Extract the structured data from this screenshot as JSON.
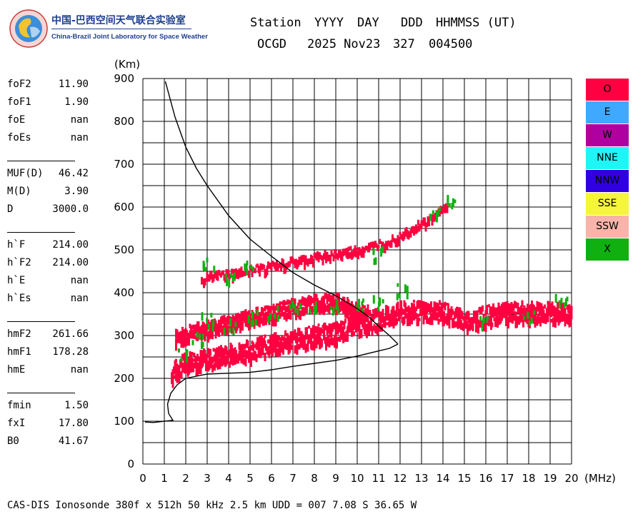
{
  "logo": {
    "title_cn": "中国-巴西空间天气联合实验室",
    "title_en": "China-Brazil Joint Laboratory for Space Weather"
  },
  "header": {
    "labels": [
      "Station",
      "YYYY",
      "DAY",
      "DDD",
      "HHMMSS (UT)"
    ],
    "station": "OCGD",
    "date": "2025 Nov23",
    "doy": "327",
    "time": "004500"
  },
  "params": [
    {
      "name": "foF2",
      "value": "11.90"
    },
    {
      "name": "foF1",
      "value": "1.90"
    },
    {
      "name": "foE",
      "value": "nan"
    },
    {
      "name": "foEs",
      "value": "nan"
    },
    {
      "name": "MUF(D)",
      "value": "46.42"
    },
    {
      "name": "M(D)",
      "value": "3.90"
    },
    {
      "name": "D",
      "value": "3000.0"
    },
    {
      "name": "h`F",
      "value": "214.00"
    },
    {
      "name": "h`F2",
      "value": "214.00"
    },
    {
      "name": "h`E",
      "value": "nan"
    },
    {
      "name": "h`Es",
      "value": "nan"
    },
    {
      "name": "hmF2",
      "value": "261.66"
    },
    {
      "name": "hmF1",
      "value": "178.28"
    },
    {
      "name": "hmE",
      "value": "nan"
    },
    {
      "name": "fmin",
      "value": "1.50"
    },
    {
      "name": "fxI",
      "value": "17.80"
    },
    {
      "name": "B0",
      "value": "41.67"
    }
  ],
  "legend": [
    {
      "label": "O",
      "color": "#ff0040"
    },
    {
      "label": "E",
      "color": "#3fa9ff"
    },
    {
      "label": "W",
      "color": "#b000a0"
    },
    {
      "label": "NNE",
      "color": "#1ff5f5"
    },
    {
      "label": "NNW",
      "color": "#3000e0"
    },
    {
      "label": "SSE",
      "color": "#f5f53a"
    },
    {
      "label": "SSW",
      "color": "#f8b4aa"
    },
    {
      "label": "X",
      "color": "#10b010"
    }
  ],
  "footer": "CAS-DIS Ionosonde 380f x 512h 50 kHz 2.5 km UDD = 007 7.08 S 36.65 W",
  "chart_data": {
    "type": "scatter",
    "xlabel": "(MHz)",
    "ylabel": "(Km)",
    "xlim": [
      0,
      20
    ],
    "ylim": [
      0,
      900
    ],
    "xticks": [
      "0",
      "1",
      "2",
      "3",
      "4",
      "5",
      "6",
      "7",
      "8",
      "9",
      "10",
      "11",
      "12",
      "13",
      "14",
      "15",
      "16",
      "17",
      "18",
      "19",
      "20"
    ],
    "yticks": [
      "0",
      "100",
      "200",
      "300",
      "400",
      "500",
      "600",
      "700",
      "800",
      "900"
    ],
    "grid": true,
    "legend_position": "right",
    "traces": [
      {
        "polarization": "O",
        "color": "#ff0040",
        "points": [
          [
            1.3,
            215
          ],
          [
            1.5,
            225
          ],
          [
            2,
            245
          ],
          [
            3,
            250
          ],
          [
            4,
            262
          ],
          [
            5,
            272
          ],
          [
            6,
            285
          ],
          [
            7,
            295
          ],
          [
            8,
            305
          ],
          [
            9,
            312
          ],
          [
            10,
            330
          ],
          [
            11,
            345
          ],
          [
            12,
            360
          ],
          [
            13,
            362
          ],
          [
            14,
            360
          ],
          [
            15,
            340
          ],
          [
            16,
            350
          ],
          [
            17,
            360
          ],
          [
            18,
            360
          ],
          [
            19,
            360
          ],
          [
            20,
            355
          ]
        ]
      },
      {
        "polarization": "O",
        "color": "#ff0040",
        "points": [
          [
            1.5,
            300
          ],
          [
            2,
            310
          ],
          [
            3,
            322
          ],
          [
            4,
            335
          ],
          [
            5,
            348
          ],
          [
            6,
            358
          ],
          [
            7,
            372
          ],
          [
            8,
            382
          ],
          [
            9,
            385
          ],
          [
            10,
            362
          ],
          [
            10.5,
            355
          ]
        ]
      },
      {
        "polarization": "O",
        "color": "#ff0040",
        "points": [
          [
            2.7,
            440
          ],
          [
            3.5,
            445
          ],
          [
            4.5,
            452
          ],
          [
            5.5,
            462
          ],
          [
            6.5,
            472
          ],
          [
            7.5,
            482
          ],
          [
            8.5,
            492
          ],
          [
            9.5,
            500
          ],
          [
            10.5,
            510
          ],
          [
            11.5,
            528
          ],
          [
            12.5,
            555
          ],
          [
            13.5,
            580
          ],
          [
            14.2,
            615
          ]
        ]
      },
      {
        "polarization": "X",
        "color": "#10b010",
        "points": [
          [
            1.8,
            260
          ],
          [
            2.5,
            300
          ],
          [
            3,
            340
          ],
          [
            4,
            330
          ],
          [
            5,
            350
          ],
          [
            6,
            360
          ],
          [
            7,
            370
          ],
          [
            8,
            375
          ],
          [
            9,
            372
          ],
          [
            10,
            372
          ],
          [
            11,
            380
          ],
          [
            12,
            410
          ],
          [
            3,
            470
          ],
          [
            4,
            445
          ],
          [
            5,
            460
          ],
          [
            11,
            495
          ],
          [
            13.5,
            590
          ],
          [
            14.3,
            620
          ],
          [
            16,
            340
          ],
          [
            18,
            345
          ],
          [
            19.5,
            390
          ]
        ]
      }
    ],
    "profile": {
      "type": "line",
      "color": "#000000",
      "points": [
        [
          0.1,
          98
        ],
        [
          0.5,
          97
        ],
        [
          1.0,
          100
        ],
        [
          1.4,
          102
        ],
        [
          1.2,
          118
        ],
        [
          1.15,
          140
        ],
        [
          1.3,
          165
        ],
        [
          1.6,
          185
        ],
        [
          2.0,
          200
        ],
        [
          3.0,
          210
        ],
        [
          4.0,
          212
        ],
        [
          5.0,
          214
        ],
        [
          6.0,
          220
        ],
        [
          7.0,
          228
        ],
        [
          8.0,
          235
        ],
        [
          9.0,
          242
        ],
        [
          10.0,
          252
        ],
        [
          11.0,
          264
        ],
        [
          11.5,
          270
        ],
        [
          11.9,
          280
        ]
      ]
    },
    "virtual_height": {
      "type": "line",
      "color": "#000000",
      "points": [
        [
          1.05,
          893
        ],
        [
          1.5,
          810
        ],
        [
          2.0,
          740
        ],
        [
          2.5,
          690
        ],
        [
          3.0,
          650
        ],
        [
          4.0,
          580
        ],
        [
          5.0,
          525
        ],
        [
          6.0,
          485
        ],
        [
          7.0,
          447
        ],
        [
          8.0,
          418
        ],
        [
          9.0,
          393
        ],
        [
          10.0,
          363
        ],
        [
          10.5,
          345
        ],
        [
          11.0,
          322
        ],
        [
          11.5,
          300
        ],
        [
          11.9,
          280
        ]
      ]
    }
  }
}
